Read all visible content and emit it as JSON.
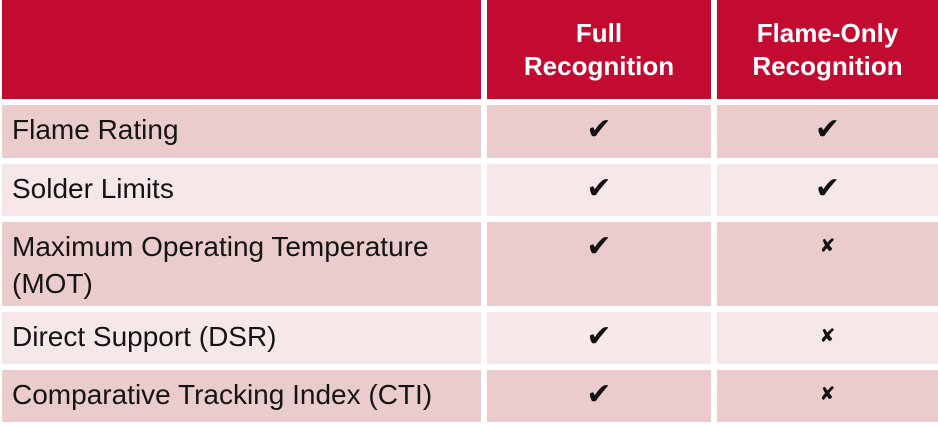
{
  "table": {
    "header": {
      "feature": "",
      "full": "Full\nRecognition",
      "flame_only": "Flame-Only\nRecognition"
    },
    "rows": [
      {
        "label": "Flame Rating",
        "full_mark": "✔",
        "flame_only_mark": "✔"
      },
      {
        "label": "Solder Limits",
        "full_mark": "✔",
        "flame_only_mark": "✔"
      },
      {
        "label": "Maximum Operating Temperature (MOT)",
        "full_mark": "✔",
        "flame_only_mark": "✘"
      },
      {
        "label": "Direct Support (DSR)",
        "full_mark": "✔",
        "flame_only_mark": "✘"
      },
      {
        "label": "Comparative Tracking Index (CTI)",
        "full_mark": "✔",
        "flame_only_mark": "✘"
      }
    ],
    "glyphs": {
      "check": "✔",
      "cross": "✘"
    },
    "colors": {
      "header_red": "#C30B31",
      "row_dark": "#EBCCCC",
      "row_light": "#F6E8E8",
      "header_text": "#FFFFFF",
      "mark": "#111111",
      "background": "#FFFFFF"
    }
  },
  "chart_data": {
    "type": "table",
    "columns": [
      "",
      "Full Recognition",
      "Flame-Only Recognition"
    ],
    "rows": [
      {
        "feature": "Flame Rating",
        "full_recognition": true,
        "flame_only_recognition": true
      },
      {
        "feature": "Solder Limits",
        "full_recognition": true,
        "flame_only_recognition": true
      },
      {
        "feature": "Maximum Operating Temperature (MOT)",
        "full_recognition": true,
        "flame_only_recognition": false
      },
      {
        "feature": "Direct Support (DSR)",
        "full_recognition": true,
        "flame_only_recognition": false
      },
      {
        "feature": "Comparative Tracking Index (CTI)",
        "full_recognition": true,
        "flame_only_recognition": false
      }
    ]
  }
}
